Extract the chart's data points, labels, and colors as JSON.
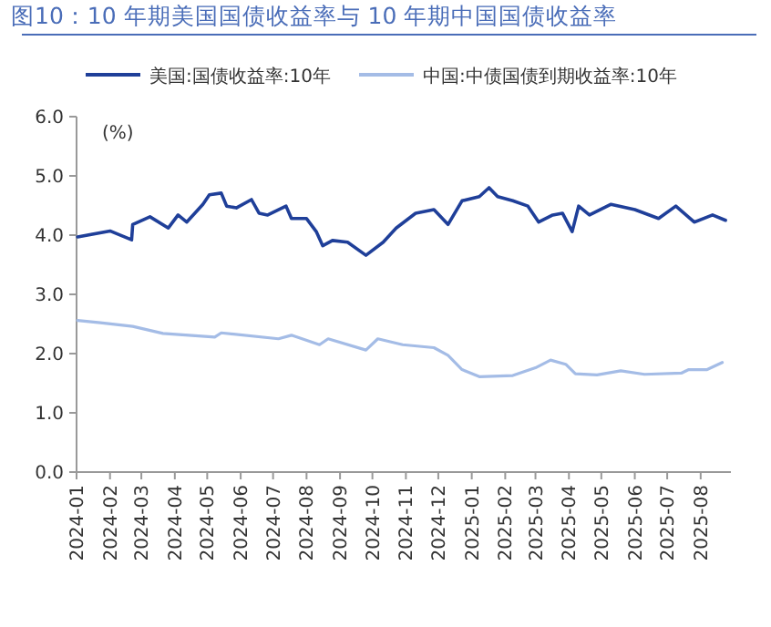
{
  "chart_data": {
    "type": "line",
    "title": "图10：10 年期美国国债收益率与 10 年期中国国债收益率",
    "ylabel": "(%)",
    "legend": "top",
    "grid": false,
    "line_style": "solid",
    "marker": "none",
    "xlim": [
      "2024-01-01",
      "2025-08-29"
    ],
    "xticks": [
      "2024-01",
      "2024-02",
      "2024-03",
      "2024-04",
      "2024-05",
      "2024-06",
      "2024-07",
      "2024-08",
      "2024-09",
      "2024-10",
      "2024-11",
      "2024-12",
      "2025-01",
      "2025-02",
      "2025-03",
      "2025-04",
      "2025-05",
      "2025-06",
      "2025-07",
      "2025-08"
    ],
    "ylim": [
      0,
      6
    ],
    "yticks": [
      {
        "value": 0,
        "label": "0.0"
      },
      {
        "value": 1,
        "label": "1.0"
      },
      {
        "value": 2,
        "label": "2.0"
      },
      {
        "value": 3,
        "label": "3.0"
      },
      {
        "value": 4,
        "label": "4.0"
      },
      {
        "value": 5,
        "label": "5.0"
      },
      {
        "value": 6,
        "label": "6.0"
      }
    ],
    "series": [
      {
        "name": "美国:国债收益率:10年",
        "color": "#1f3f99",
        "x": [
          "2024-01-02",
          "2024-02-01",
          "2024-02-21",
          "2024-02-22",
          "2024-03-09",
          "2024-03-26",
          "2024-04-04",
          "2024-04-12",
          "2024-04-27",
          "2024-05-03",
          "2024-05-14",
          "2024-05-19",
          "2024-05-28",
          "2024-06-11",
          "2024-06-18",
          "2024-06-26",
          "2024-07-13",
          "2024-07-18",
          "2024-08-01",
          "2024-08-10",
          "2024-08-16",
          "2024-08-25",
          "2024-09-08",
          "2024-09-25",
          "2024-10-11",
          "2024-10-23",
          "2024-11-10",
          "2024-11-27",
          "2024-12-10",
          "2024-12-23",
          "2025-01-08",
          "2025-01-17",
          "2025-01-25",
          "2025-02-08",
          "2025-02-22",
          "2025-03-04",
          "2025-03-17",
          "2025-03-26",
          "2025-04-04",
          "2025-04-10",
          "2025-04-20",
          "2025-05-10",
          "2025-06-01",
          "2025-06-23",
          "2025-07-09",
          "2025-07-26",
          "2025-08-12",
          "2025-08-24"
        ],
        "values": [
          3.97,
          4.07,
          3.92,
          4.18,
          4.31,
          4.12,
          4.34,
          4.22,
          4.52,
          4.68,
          4.71,
          4.49,
          4.46,
          4.6,
          4.37,
          4.34,
          4.49,
          4.28,
          4.28,
          4.06,
          3.82,
          3.91,
          3.88,
          3.66,
          3.88,
          4.12,
          4.37,
          4.43,
          4.18,
          4.58,
          4.65,
          4.8,
          4.65,
          4.58,
          4.49,
          4.22,
          4.34,
          4.37,
          4.06,
          4.49,
          4.34,
          4.52,
          4.43,
          4.28,
          4.49,
          4.22,
          4.34,
          4.25
        ]
      },
      {
        "name": "中国:中债国债到期收益率:10年",
        "color": "#a4bce6",
        "x": [
          "2024-01-02",
          "2024-01-23",
          "2024-02-22",
          "2024-03-21",
          "2024-05-08",
          "2024-05-14",
          "2024-07-06",
          "2024-07-18",
          "2024-08-13",
          "2024-08-21",
          "2024-09-25",
          "2024-10-06",
          "2024-10-29",
          "2024-11-27",
          "2024-12-10",
          "2024-12-23",
          "2025-01-08",
          "2025-02-08",
          "2025-03-01",
          "2025-03-15",
          "2025-03-29",
          "2025-04-07",
          "2025-04-27",
          "2025-05-19",
          "2025-06-10",
          "2025-07-14",
          "2025-07-21",
          "2025-08-07",
          "2025-08-21"
        ],
        "values": [
          2.56,
          2.52,
          2.46,
          2.34,
          2.28,
          2.35,
          2.25,
          2.31,
          2.15,
          2.25,
          2.06,
          2.25,
          2.15,
          2.1,
          1.97,
          1.73,
          1.61,
          1.63,
          1.76,
          1.89,
          1.82,
          1.66,
          1.64,
          1.71,
          1.65,
          1.67,
          1.73,
          1.73,
          1.85
        ]
      }
    ]
  }
}
